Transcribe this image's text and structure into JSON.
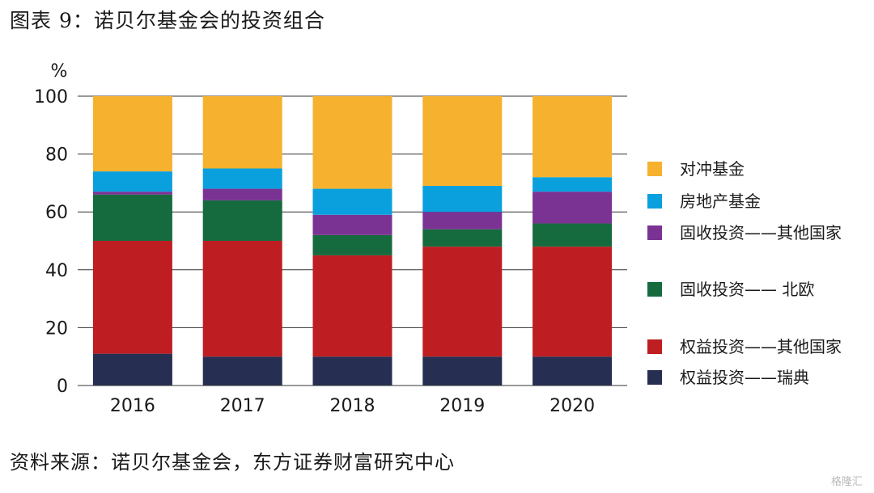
{
  "title": "图表 9：诺贝尔基金会的投资组合",
  "source": "资料来源：诺贝尔基金会，东方证券财富研究中心",
  "watermark": "格隆汇",
  "chart_data": {
    "type": "bar",
    "stacked": true,
    "unit_label": "%",
    "categories": [
      "2016",
      "2017",
      "2018",
      "2019",
      "2020"
    ],
    "ylim": [
      0,
      100
    ],
    "yticks": [
      0,
      20,
      40,
      60,
      80,
      100
    ],
    "grid": true,
    "legend_position": "right",
    "series": [
      {
        "name": "权益投资——瑞典",
        "color": "#262f52",
        "values": [
          11,
          10,
          10,
          10,
          10
        ]
      },
      {
        "name": "权益投资——其他国家",
        "color": "#be1d22",
        "values": [
          39,
          40,
          35,
          38,
          38
        ]
      },
      {
        "name": "固收投资—— 北欧",
        "color": "#156b3e",
        "values": [
          16,
          14,
          7,
          6,
          8
        ]
      },
      {
        "name": "固收投资——其他国家",
        "color": "#7b3393",
        "values": [
          1,
          4,
          7,
          6,
          11
        ]
      },
      {
        "name": "房地产基金",
        "color": "#0aa0de",
        "values": [
          7,
          7,
          9,
          9,
          5
        ]
      },
      {
        "name": "对冲基金",
        "color": "#f6b12f",
        "values": [
          26,
          25,
          32,
          31,
          28
        ]
      }
    ],
    "legend_order": [
      "对冲基金",
      "房地产基金",
      "固收投资——其他国家",
      "固收投资—— 北欧",
      "权益投资——其他国家",
      "权益投资——瑞典"
    ]
  }
}
